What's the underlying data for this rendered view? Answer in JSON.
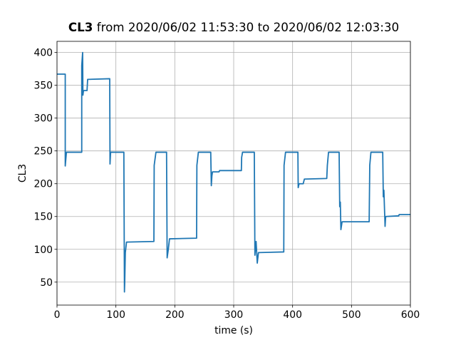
{
  "chart_data": {
    "type": "line",
    "title": {
      "name": "CL3",
      "text": "from 2020/06/02 11:53:30 to 2020/06/02 12:03:30"
    },
    "xlabel": "time (s)",
    "ylabel": "CL3",
    "color": "#1f77b4",
    "grid": true,
    "xlim": [
      0,
      600
    ],
    "ylim": [
      15,
      417
    ],
    "xticks": [
      0,
      100,
      200,
      300,
      400,
      500,
      600
    ],
    "yticks": [
      50,
      100,
      150,
      200,
      250,
      300,
      350,
      400
    ],
    "x": [
      0,
      14,
      14,
      16,
      42,
      42,
      43.5,
      44,
      45,
      51,
      52,
      89.5,
      90,
      91,
      113.5,
      114.5,
      115,
      116,
      118,
      164.5,
      165,
      168,
      186,
      187,
      189,
      191,
      237,
      237.5,
      240,
      261,
      262,
      263,
      264,
      275,
      276,
      313,
      313.5,
      315,
      335,
      336,
      338,
      340,
      342,
      385,
      385.5,
      388,
      409,
      409.5,
      411,
      418,
      420,
      458,
      459,
      461,
      479,
      480,
      481,
      482,
      484,
      530,
      531,
      533,
      553,
      554,
      555,
      557,
      558,
      580,
      581,
      600
    ],
    "values": [
      367,
      367,
      227,
      248,
      248,
      380,
      400,
      335,
      342,
      342,
      359,
      360,
      230,
      248,
      248,
      35,
      50,
      95,
      111,
      112,
      228,
      248,
      248,
      87,
      100,
      116,
      117,
      228,
      248,
      248,
      197,
      212,
      218,
      218,
      220,
      220,
      240,
      248,
      248,
      91,
      112,
      79,
      95,
      96,
      228,
      248,
      248,
      194,
      200,
      200,
      207,
      208,
      228,
      248,
      248,
      165,
      172,
      130,
      142,
      142,
      228,
      248,
      248,
      180,
      190,
      135,
      150,
      151,
      153,
      153
    ]
  }
}
